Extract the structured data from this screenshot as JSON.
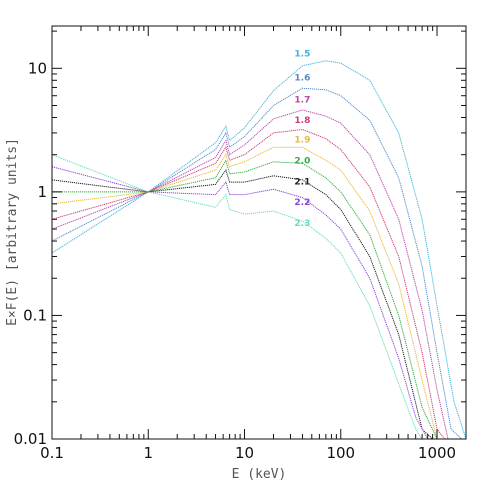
{
  "chart_data": {
    "type": "line",
    "xscale": "log",
    "yscale": "log",
    "xlim": [
      0.1,
      2000
    ],
    "ylim": [
      0.01,
      22
    ],
    "xlabel": "E (keV)",
    "ylabel": "E×F(E) [arbitrary units]",
    "x_ticks": [
      {
        "value": 0.1,
        "label": "0.1"
      },
      {
        "value": 1,
        "label": "1"
      },
      {
        "value": 10,
        "label": "10"
      },
      {
        "value": 100,
        "label": "100"
      },
      {
        "value": 1000,
        "label": "1000"
      }
    ],
    "y_ticks": [
      {
        "value": 0.01,
        "label": "0.01"
      },
      {
        "value": 0.1,
        "label": "0.1"
      },
      {
        "value": 1,
        "label": "1"
      },
      {
        "value": 10,
        "label": "10"
      }
    ],
    "grid": false,
    "series": [
      {
        "name": "1.5",
        "color": "#3fb3dd",
        "x": [
          0.1,
          1,
          5,
          6.4,
          7,
          10,
          20,
          40,
          70,
          100,
          200,
          400,
          700,
          1000,
          1500,
          2000
        ],
        "y": [
          0.32,
          1.0,
          2.5,
          3.4,
          2.6,
          3.3,
          6.6,
          10.5,
          11.5,
          11.0,
          8.0,
          3.0,
          0.6,
          0.12,
          0.02,
          0.01
        ]
      },
      {
        "name": "1.6",
        "color": "#5588cc",
        "x": [
          0.1,
          1,
          5,
          6.4,
          7,
          10,
          20,
          40,
          70,
          100,
          200,
          400,
          700,
          1000,
          1400,
          1800
        ],
        "y": [
          0.4,
          1.0,
          2.2,
          3.0,
          2.3,
          2.8,
          5.0,
          6.9,
          6.7,
          6.0,
          3.8,
          1.3,
          0.25,
          0.05,
          0.012,
          0.01
        ]
      },
      {
        "name": "1.7",
        "color": "#bb44aa",
        "x": [
          0.1,
          1,
          5,
          6.4,
          7,
          10,
          20,
          40,
          70,
          100,
          200,
          400,
          700,
          1000,
          1300
        ],
        "y": [
          0.5,
          1.0,
          1.9,
          2.6,
          2.0,
          2.4,
          3.9,
          4.6,
          4.1,
          3.6,
          2.0,
          0.6,
          0.11,
          0.025,
          0.01
        ]
      },
      {
        "name": "1.8",
        "color": "#d03878",
        "x": [
          0.1,
          1,
          5,
          6.4,
          7,
          10,
          20,
          40,
          70,
          100,
          200,
          400,
          700,
          1000,
          1200
        ],
        "y": [
          0.6,
          1.0,
          1.7,
          2.3,
          1.8,
          2.0,
          3.0,
          3.2,
          2.7,
          2.2,
          1.1,
          0.3,
          0.05,
          0.012,
          0.01
        ]
      },
      {
        "name": "1.9",
        "color": "#e8b830",
        "x": [
          0.1,
          1,
          5,
          6.4,
          7,
          10,
          20,
          40,
          70,
          100,
          200,
          400,
          700,
          1000,
          1100
        ],
        "y": [
          0.8,
          1.0,
          1.5,
          2.0,
          1.6,
          1.75,
          2.3,
          2.3,
          1.8,
          1.5,
          0.7,
          0.18,
          0.03,
          0.01,
          0.01
        ]
      },
      {
        "name": "2.0",
        "color": "#33aa44",
        "x": [
          0.1,
          1,
          5,
          6.4,
          7,
          10,
          20,
          40,
          70,
          100,
          200,
          400,
          700,
          1000
        ],
        "y": [
          1.0,
          1.0,
          1.3,
          1.8,
          1.4,
          1.45,
          1.75,
          1.7,
          1.3,
          1.0,
          0.45,
          0.1,
          0.018,
          0.01
        ]
      },
      {
        "name": "2.1",
        "color": "#222222",
        "x": [
          0.1,
          1,
          5,
          6.4,
          7,
          10,
          20,
          40,
          70,
          100,
          200,
          400,
          700,
          900
        ],
        "y": [
          1.25,
          1.0,
          1.15,
          1.5,
          1.2,
          1.2,
          1.35,
          1.25,
          0.95,
          0.72,
          0.3,
          0.07,
          0.012,
          0.01
        ]
      },
      {
        "name": "2.2",
        "color": "#8844dd",
        "x": [
          0.1,
          1,
          5,
          6.4,
          7,
          10,
          20,
          40,
          70,
          100,
          200,
          400,
          600,
          800
        ],
        "y": [
          1.6,
          1.0,
          0.95,
          1.2,
          0.95,
          0.95,
          1.05,
          0.9,
          0.65,
          0.5,
          0.2,
          0.045,
          0.015,
          0.01
        ]
      },
      {
        "name": "2.3",
        "color": "#66ddbb",
        "x": [
          0.1,
          1,
          5,
          6.4,
          7,
          10,
          20,
          40,
          70,
          100,
          200,
          400,
          600,
          700
        ],
        "y": [
          2.0,
          1.0,
          0.75,
          0.95,
          0.72,
          0.66,
          0.7,
          0.58,
          0.42,
          0.32,
          0.12,
          0.028,
          0.012,
          0.01
        ]
      }
    ],
    "label_positions": [
      {
        "name": "1.5",
        "x": 30,
        "y": 12.5
      },
      {
        "name": "1.6",
        "x": 30,
        "y": 8.0
      },
      {
        "name": "1.7",
        "x": 30,
        "y": 5.3
      },
      {
        "name": "1.8",
        "x": 30,
        "y": 3.6
      },
      {
        "name": "1.9",
        "x": 30,
        "y": 2.5
      },
      {
        "name": "2.0",
        "x": 30,
        "y": 1.7
      },
      {
        "name": "2.1",
        "x": 30,
        "y": 1.15
      },
      {
        "name": "2.2",
        "x": 30,
        "y": 0.78
      },
      {
        "name": "2.3",
        "x": 30,
        "y": 0.53
      }
    ]
  }
}
